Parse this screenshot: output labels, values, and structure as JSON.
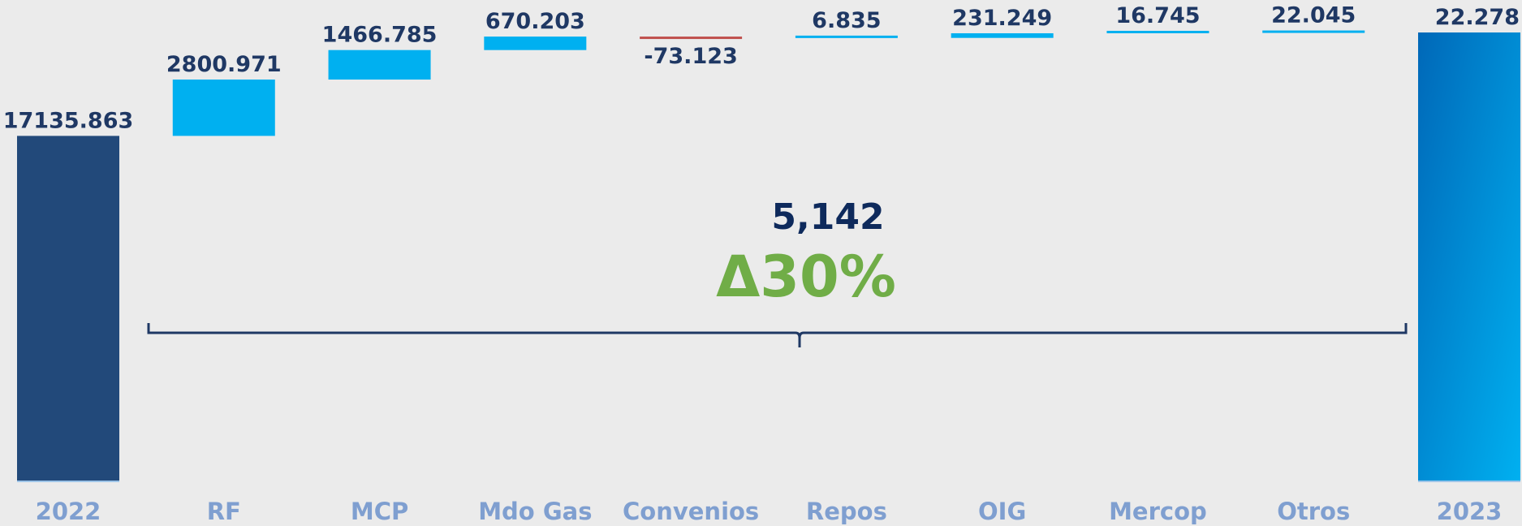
{
  "chart_data": {
    "type": "waterfall",
    "categories": [
      "2022",
      "RF",
      "MCP",
      "Mdo Gas",
      "Convenios",
      "Repos",
      "OIG",
      "Mercop",
      "Otros",
      "2023"
    ],
    "values": [
      17135.863,
      2800.971,
      1466.785,
      670.203,
      -73.123,
      6.835,
      231.249,
      16.745,
      22.045,
      22278
    ],
    "value_labels": [
      "17135.863",
      "2800.971",
      "1466.785",
      "670.203",
      "-73.123",
      "6.835",
      "231.249",
      "16.745",
      "22.045",
      "22.278"
    ],
    "colors": {
      "start": "#22497a",
      "increase": "#00b0f0",
      "decrease": "#c0504d",
      "total": "#0070c0"
    },
    "annotations": [
      "5,142",
      "Δ30%"
    ]
  }
}
